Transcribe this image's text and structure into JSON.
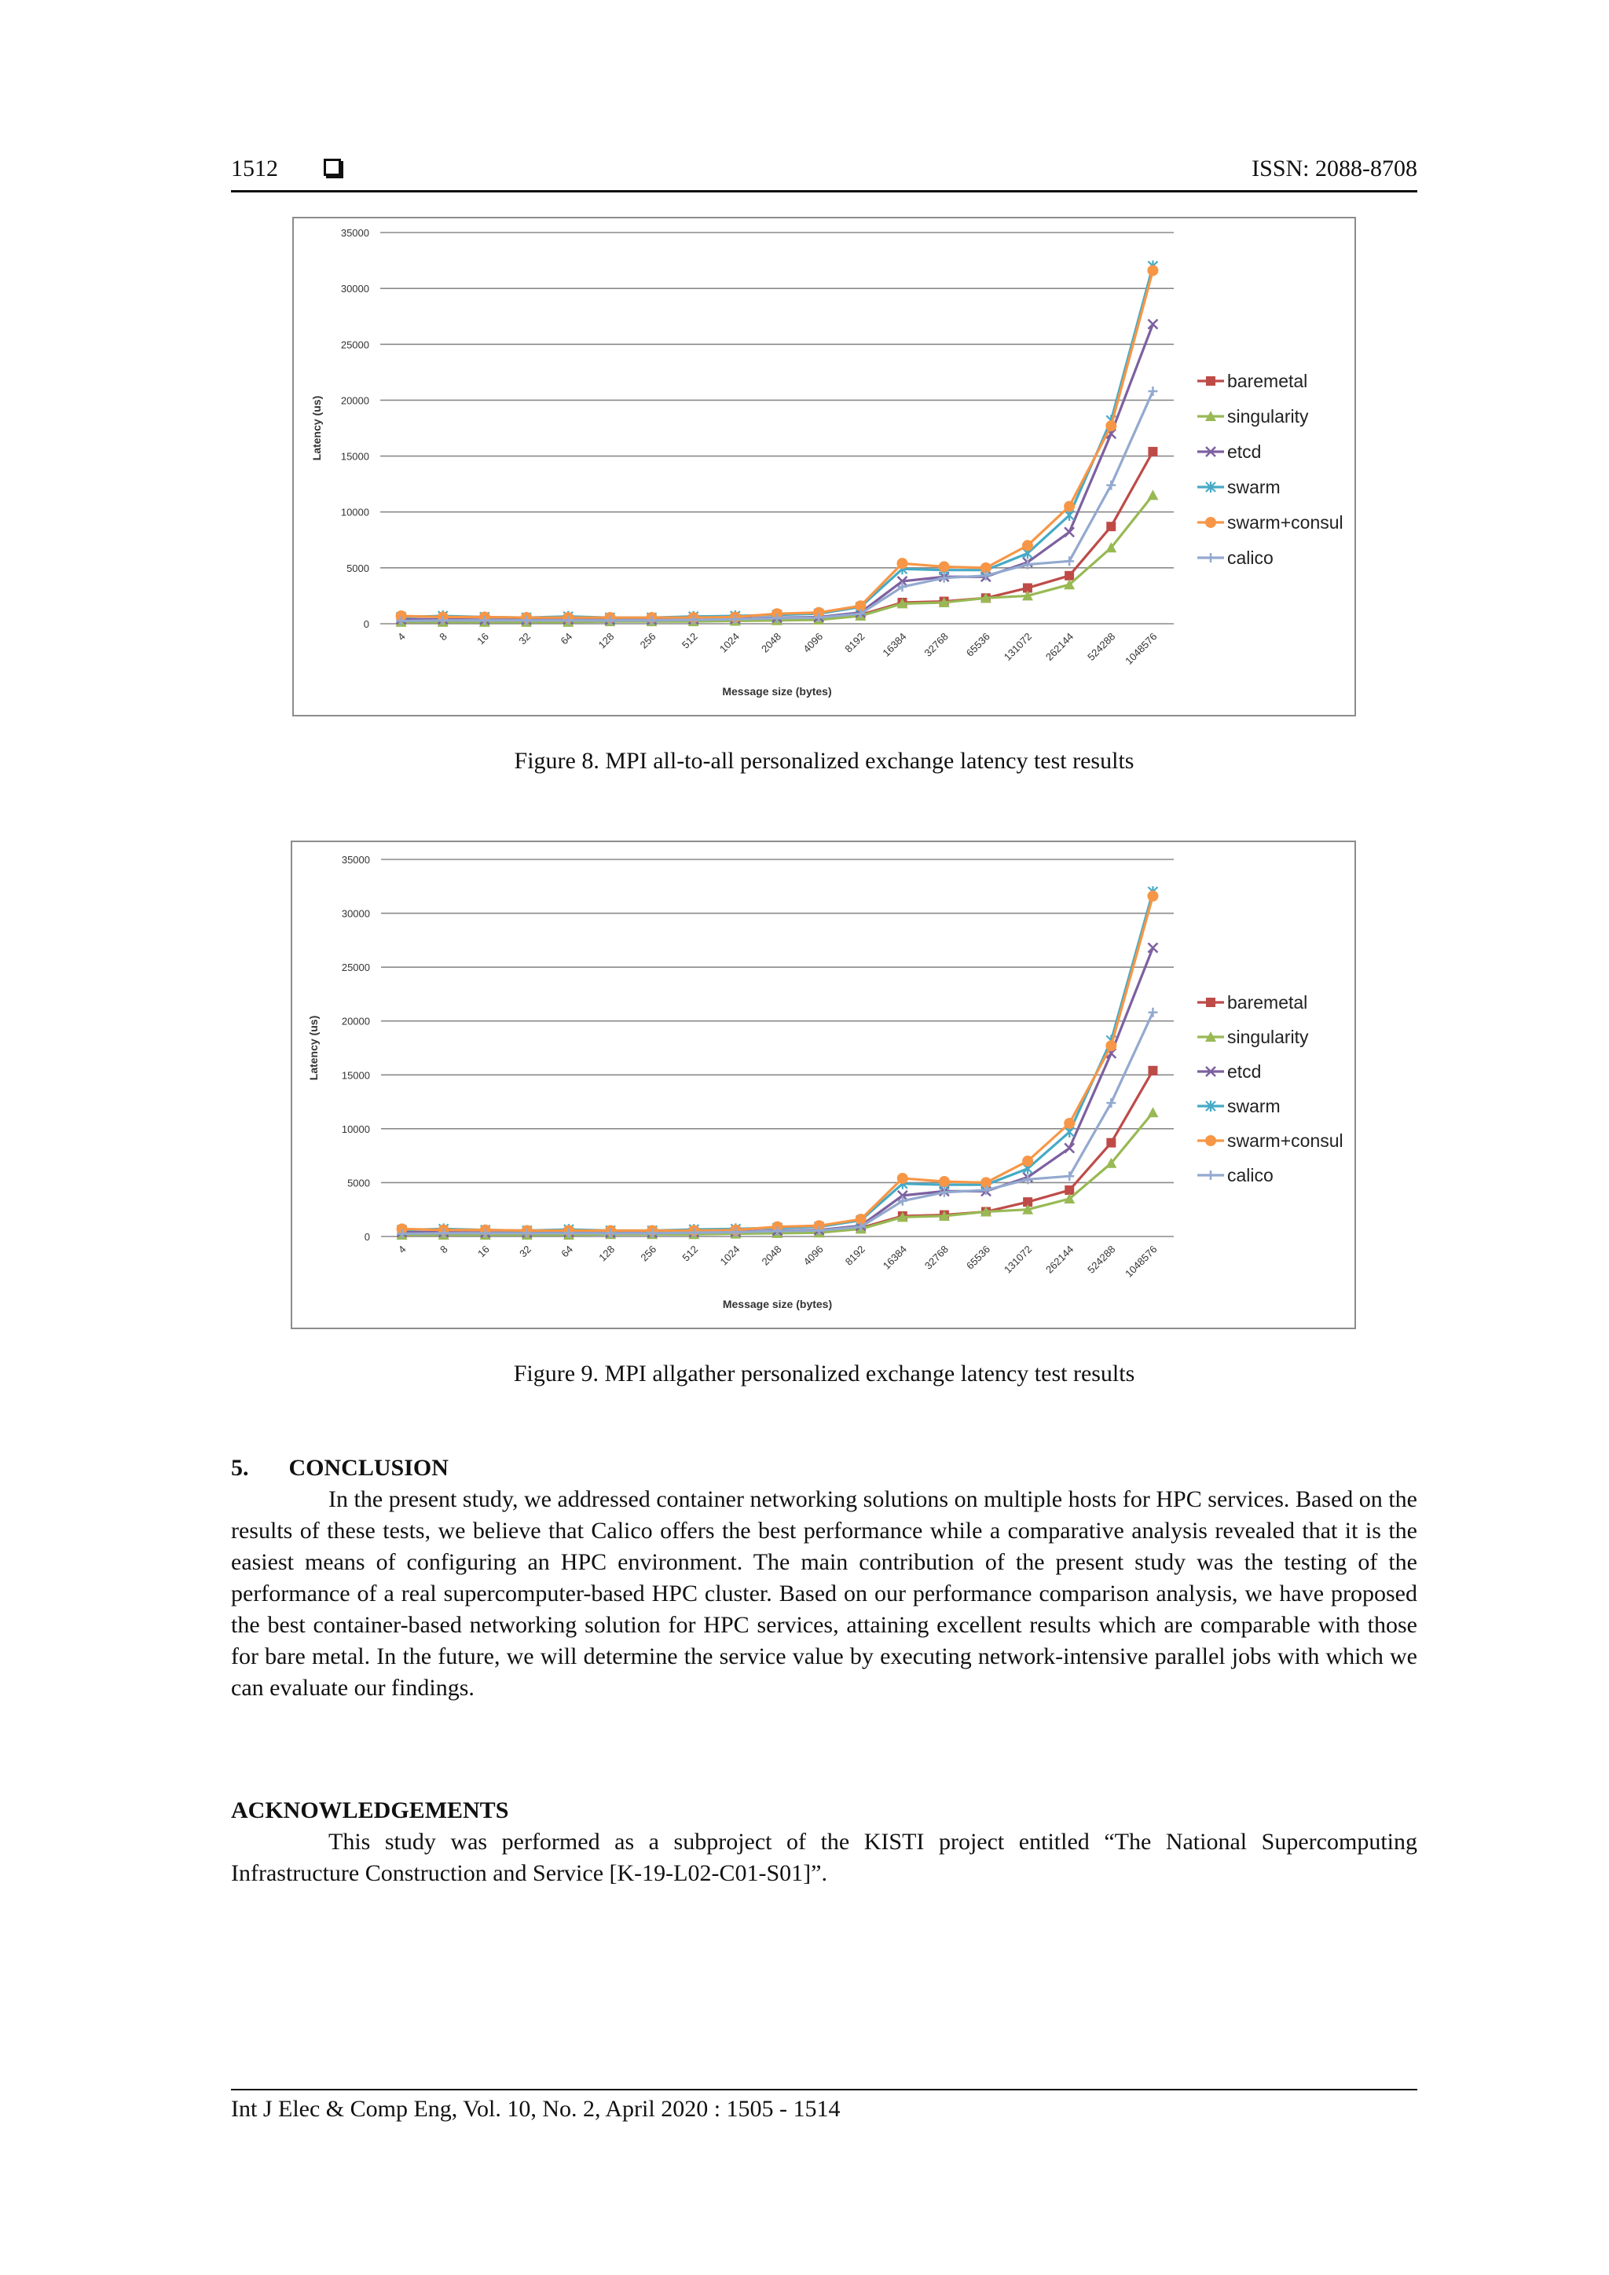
{
  "header": {
    "page_number": "1512",
    "issn": "ISSN: 2088-8708"
  },
  "figures": [
    {
      "caption": "Figure 8. MPI all-to-all personalized exchange latency test results"
    },
    {
      "caption": "Figure 9. MPI allgather personalized exchange latency test results"
    }
  ],
  "conclusion": {
    "heading_number": "5.",
    "heading": "CONCLUSION",
    "text": "In the present study, we addressed container networking solutions on multiple hosts for HPC services. Based on the results of these tests, we believe that Calico offers the best performance while a comparative analysis revealed that it is the easiest means of configuring an HPC environment. The main contribution of the present study was the testing of the performance of a real supercomputer-based HPC cluster. Based on our performance comparison analysis, we have proposed the best container-based networking solution for HPC services, attaining excellent results which are comparable with those for bare metal. In the future, we will determine the service value by executing network-intensive parallel jobs with which we can evaluate our findings."
  },
  "acknowledgements": {
    "heading": "ACKNOWLEDGEMENTS",
    "text": "This study was performed as a subproject of the KISTI project entitled “The National Supercomputing Infrastructure Construction and Service [K-19-L02-C01-S01]”."
  },
  "footer": {
    "citation": "Int J Elec & Comp Eng, Vol. 10, No. 2, April 2020 :  1505 - 1514"
  },
  "chart_data": [
    {
      "type": "line",
      "title": "",
      "xlabel": "Message size (bytes)",
      "ylabel": "Latency (us)",
      "ylim": [
        0,
        35000
      ],
      "yticks": [
        "0",
        "5000",
        "10000",
        "15000",
        "20000",
        "25000",
        "30000",
        "35000"
      ],
      "grid": true,
      "legend": "right",
      "categories": [
        "4",
        "8",
        "16",
        "32",
        "64",
        "128",
        "256",
        "512",
        "1024",
        "2048",
        "4096",
        "8192",
        "16384",
        "32768",
        "65536",
        "131072",
        "262144",
        "524288",
        "1048576"
      ],
      "series": [
        {
          "name": "baremetal",
          "color": "#be4b48",
          "marker": "square",
          "values": [
            200,
            200,
            200,
            250,
            250,
            250,
            250,
            250,
            300,
            350,
            400,
            800,
            1900,
            2000,
            2300,
            3200,
            4300,
            8700,
            15400
          ]
        },
        {
          "name": "singularity",
          "color": "#98b954",
          "marker": "triangle",
          "values": [
            150,
            150,
            150,
            150,
            150,
            200,
            200,
            200,
            250,
            300,
            350,
            700,
            1800,
            1900,
            2300,
            2500,
            3500,
            6800,
            11500
          ]
        },
        {
          "name": "etcd",
          "color": "#7d60a0",
          "marker": "x",
          "values": [
            400,
            400,
            350,
            350,
            400,
            350,
            350,
            400,
            450,
            550,
            600,
            1000,
            3800,
            4200,
            4200,
            5500,
            8200,
            17000,
            26800
          ]
        },
        {
          "name": "swarm",
          "color": "#46aac5",
          "marker": "star",
          "values": [
            600,
            700,
            600,
            550,
            650,
            550,
            550,
            650,
            700,
            800,
            900,
            1500,
            4900,
            4800,
            4800,
            6300,
            9700,
            18200,
            32000
          ]
        },
        {
          "name": "swarm+consul",
          "color": "#f79646",
          "marker": "circle",
          "values": [
            700,
            600,
            600,
            550,
            550,
            550,
            550,
            550,
            600,
            900,
            1000,
            1600,
            5400,
            5100,
            5000,
            7000,
            10500,
            17700,
            31600
          ]
        },
        {
          "name": "calico",
          "color": "#93a9cf",
          "marker": "plus",
          "values": [
            250,
            300,
            300,
            300,
            300,
            300,
            300,
            350,
            400,
            500,
            550,
            900,
            3300,
            4100,
            4300,
            5300,
            5600,
            12400,
            20800
          ]
        }
      ]
    },
    {
      "type": "line",
      "title": "",
      "xlabel": "Message size (bytes)",
      "ylabel": "Latency (us)",
      "ylim": [
        0,
        35000
      ],
      "yticks": [
        "0",
        "5000",
        "10000",
        "15000",
        "20000",
        "25000",
        "30000",
        "35000"
      ],
      "grid": true,
      "legend": "right",
      "categories": [
        "4",
        "8",
        "16",
        "32",
        "64",
        "128",
        "256",
        "512",
        "1024",
        "2048",
        "4096",
        "8192",
        "16384",
        "32768",
        "65536",
        "131072",
        "262144",
        "524288",
        "1048576"
      ],
      "series": [
        {
          "name": "baremetal",
          "color": "#be4b48",
          "marker": "square",
          "values": [
            200,
            200,
            200,
            250,
            250,
            250,
            250,
            250,
            300,
            350,
            400,
            800,
            1900,
            2000,
            2300,
            3200,
            4300,
            8700,
            15400
          ]
        },
        {
          "name": "singularity",
          "color": "#98b954",
          "marker": "triangle",
          "values": [
            150,
            150,
            150,
            150,
            150,
            200,
            200,
            200,
            250,
            300,
            350,
            700,
            1800,
            1900,
            2300,
            2500,
            3500,
            6800,
            11500
          ]
        },
        {
          "name": "etcd",
          "color": "#7d60a0",
          "marker": "x",
          "values": [
            400,
            400,
            350,
            350,
            400,
            350,
            350,
            400,
            450,
            550,
            600,
            1000,
            3800,
            4200,
            4200,
            5500,
            8200,
            17000,
            26800
          ]
        },
        {
          "name": "swarm",
          "color": "#46aac5",
          "marker": "star",
          "values": [
            600,
            700,
            600,
            550,
            650,
            550,
            550,
            650,
            700,
            800,
            900,
            1500,
            4900,
            4800,
            4800,
            6300,
            9700,
            18200,
            32000
          ]
        },
        {
          "name": "swarm+consul",
          "color": "#f79646",
          "marker": "circle",
          "values": [
            700,
            600,
            600,
            550,
            550,
            550,
            550,
            550,
            600,
            900,
            1000,
            1600,
            5400,
            5100,
            5000,
            7000,
            10500,
            17700,
            31600
          ]
        },
        {
          "name": "calico",
          "color": "#93a9cf",
          "marker": "plus",
          "values": [
            250,
            300,
            300,
            300,
            300,
            300,
            300,
            350,
            400,
            500,
            550,
            900,
            3300,
            4100,
            4300,
            5300,
            5600,
            12400,
            20800
          ]
        }
      ]
    }
  ]
}
